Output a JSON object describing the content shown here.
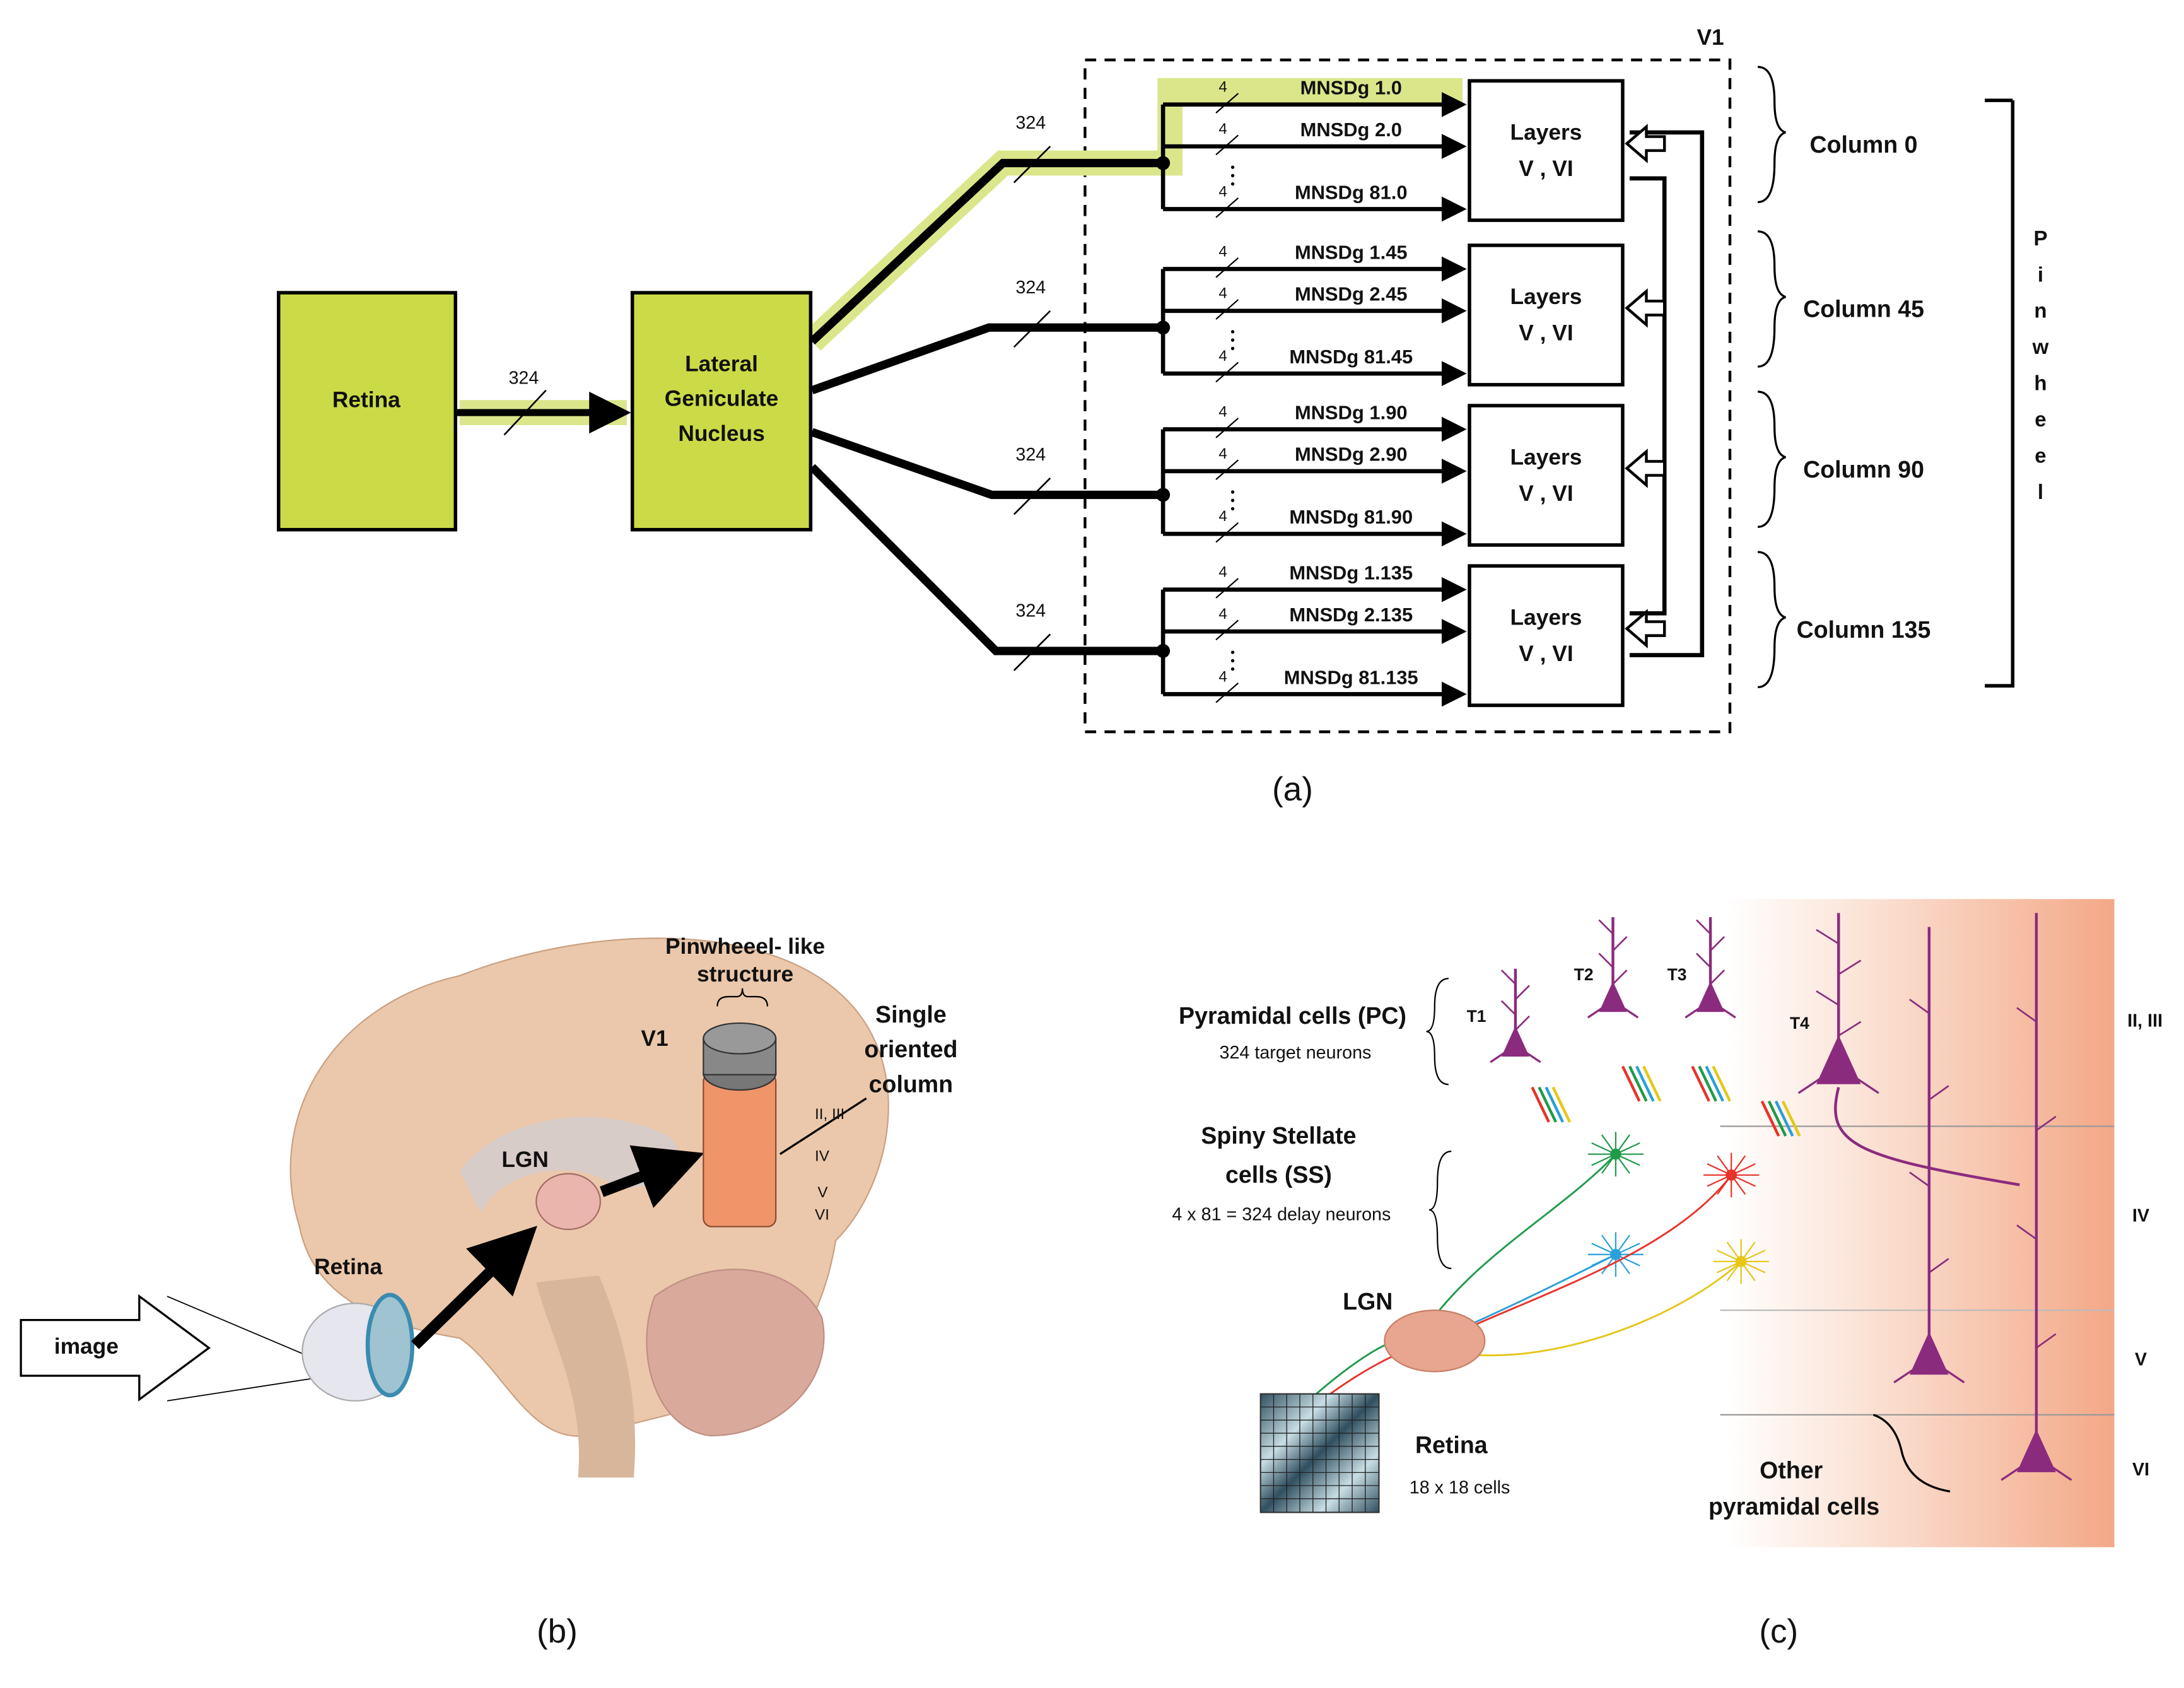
{
  "panel_a": {
    "label": "(a)",
    "v1_label": "V1",
    "retina": "Retina",
    "retina_bus": "324",
    "lgn": [
      "Lateral",
      "Geniculate",
      "Nucleus"
    ],
    "columns": [
      {
        "name": "Column 0",
        "bus": "324",
        "layers": [
          "Layers",
          "V , VI"
        ],
        "inputs": [
          {
            "width": "4",
            "label": "MNSDg 1.0"
          },
          {
            "width": "4",
            "label": "MNSDg 2.0"
          },
          {
            "width": "4",
            "label": "MNSDg 81.0"
          }
        ]
      },
      {
        "name": "Column 45",
        "bus": "324",
        "layers": [
          "Layers",
          "V , VI"
        ],
        "inputs": [
          {
            "width": "4",
            "label": "MNSDg 1.45"
          },
          {
            "width": "4",
            "label": "MNSDg 2.45"
          },
          {
            "width": "4",
            "label": "MNSDg 81.45"
          }
        ]
      },
      {
        "name": "Column 90",
        "bus": "324",
        "layers": [
          "Layers",
          "V , VI"
        ],
        "inputs": [
          {
            "width": "4",
            "label": "MNSDg 1.90"
          },
          {
            "width": "4",
            "label": "MNSDg 2.90"
          },
          {
            "width": "4",
            "label": "MNSDg 81.90"
          }
        ]
      },
      {
        "name": "Column 135",
        "bus": "324",
        "layers": [
          "Layers",
          "V , VI"
        ],
        "inputs": [
          {
            "width": "4",
            "label": "MNSDg 1.135"
          },
          {
            "width": "4",
            "label": "MNSDg 2.135"
          },
          {
            "width": "4",
            "label": "MNSDg 81.135"
          }
        ]
      }
    ],
    "pinwheel": [
      "P",
      "i",
      "n",
      "w",
      "h",
      "e",
      "e",
      "l"
    ]
  },
  "panel_b": {
    "label": "(b)",
    "pinwheel_structure": [
      "Pinwheeel- like",
      "structure"
    ],
    "v1": "V1",
    "single_column": [
      "Single",
      "oriented",
      "column"
    ],
    "layers": [
      "II, III",
      "IV",
      "V",
      "VI"
    ],
    "lgn": "LGN",
    "retina": "Retina",
    "image": "image"
  },
  "panel_c": {
    "label": "(c)",
    "pc_title": "Pyramidal cells (PC)",
    "pc_note": "324 target neurons",
    "targets": [
      "T1",
      "T2",
      "T3",
      "T4"
    ],
    "ss_title": [
      "Spiny Stellate",
      "cells (SS)"
    ],
    "ss_note": "4 x 81 = 324 delay neurons",
    "lgn": "LGN",
    "retina": "Retina",
    "retina_note": "18 x 18 cells",
    "other": [
      "Other",
      "pyramidal cells"
    ],
    "layers": [
      "II, III",
      "IV",
      "V",
      "VI"
    ]
  }
}
